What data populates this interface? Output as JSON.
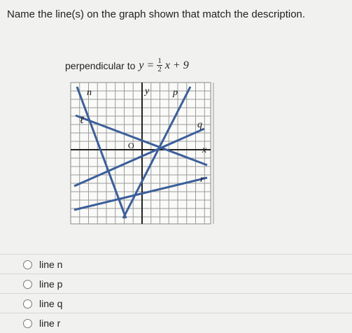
{
  "question": "Name the line(s) on the graph shown that match the description.",
  "prompt": {
    "text": "perpendicular to",
    "equation": {
      "lhs": "y =",
      "numerator": "1",
      "denominator": "2",
      "rhs": "x + 9"
    }
  },
  "graph": {
    "labels": {
      "n": "n",
      "y": "y",
      "p": "p",
      "l": "ℓ",
      "q": "q",
      "o": "O",
      "x": "x",
      "r": "r"
    }
  },
  "options": [
    "line n",
    "line p",
    "line q",
    "line r"
  ]
}
